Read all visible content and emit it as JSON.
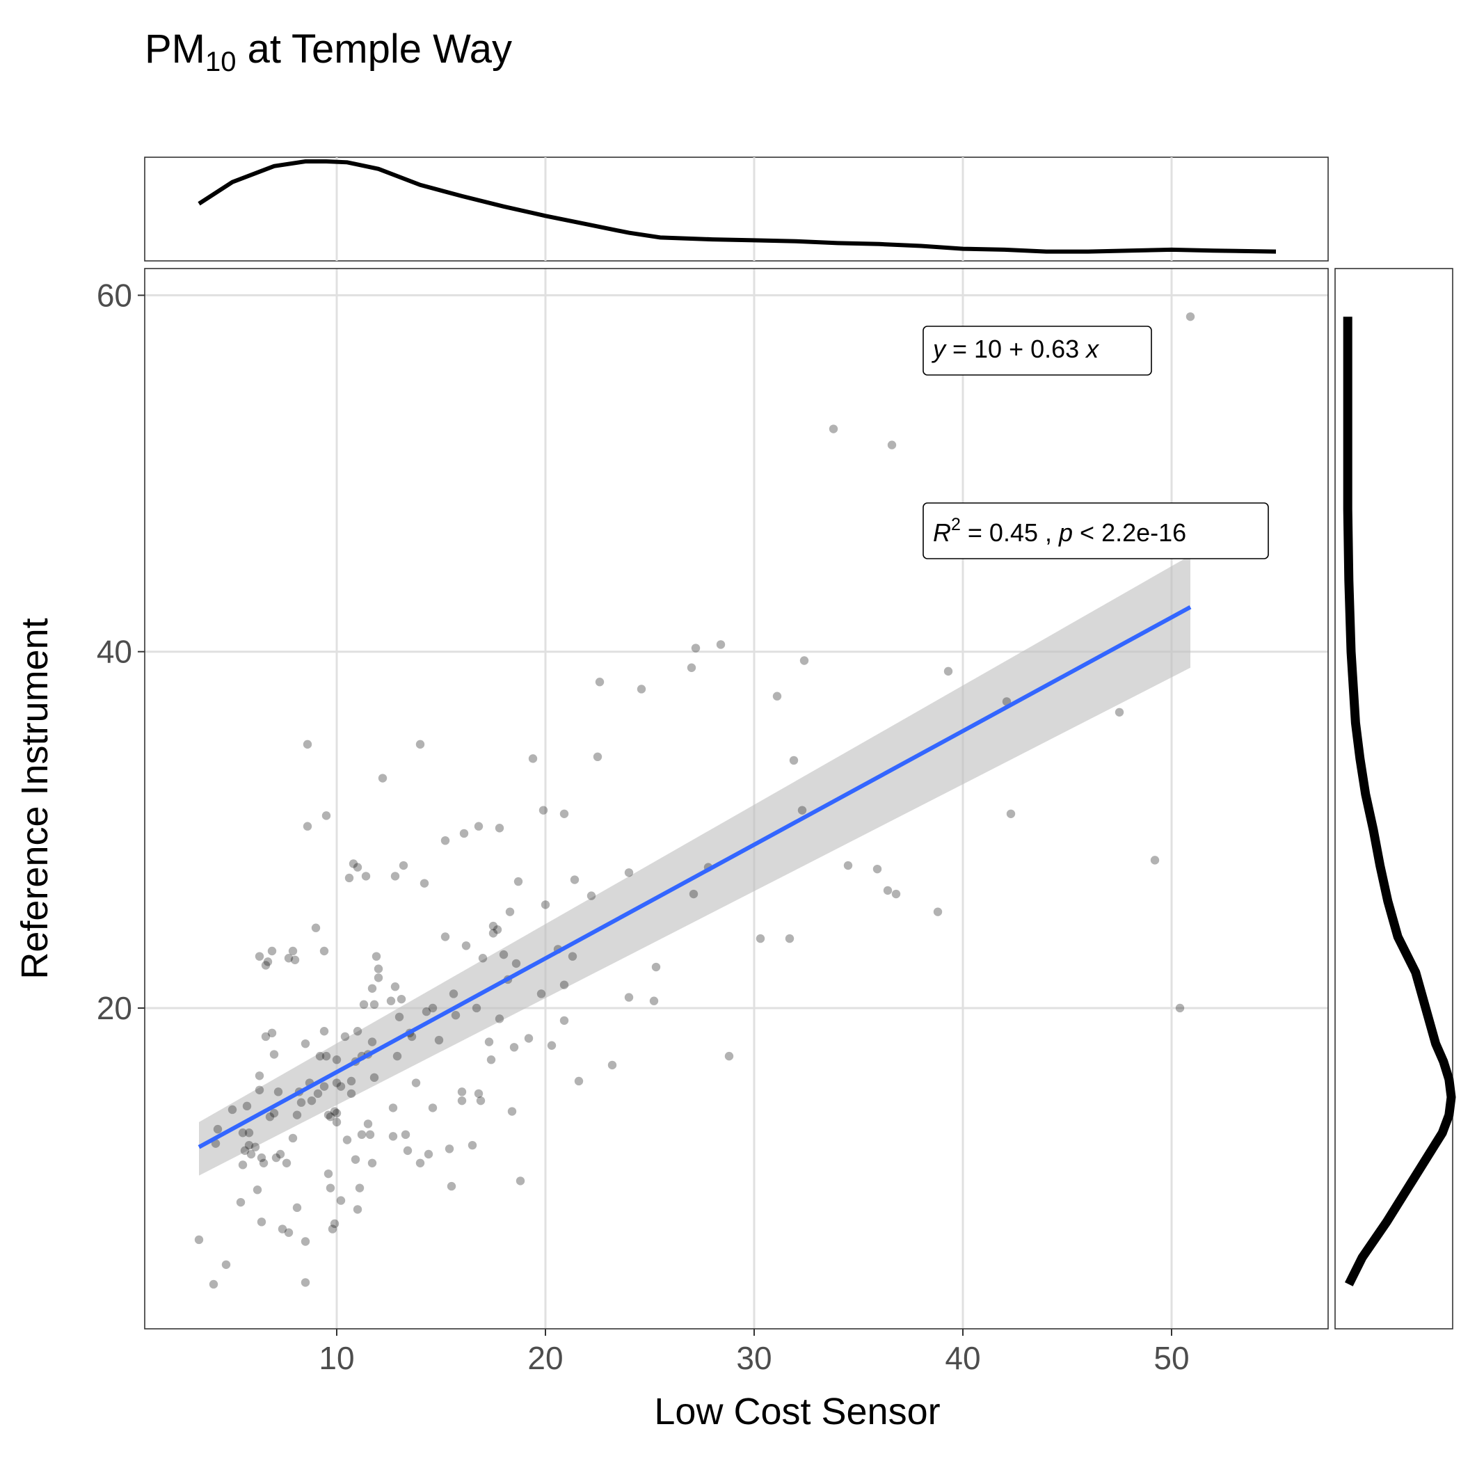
{
  "chart_data": {
    "type": "scatter",
    "title": "PM",
    "title_subscript": "10",
    "title_suffix": " at Temple Way",
    "xlabel": "Low Cost Sensor",
    "ylabel": "Reference Instrument",
    "xlim": [
      0.8,
      57.5
    ],
    "ylim": [
      2,
      61.5
    ],
    "x_ticks": [
      10,
      20,
      30,
      40,
      50
    ],
    "y_ticks": [
      20,
      40,
      60
    ],
    "grid": true,
    "point_color": "#000000",
    "regression": {
      "color": "#3366FF",
      "confidence_band_color": "#BEBEBE",
      "x_range": [
        3.4,
        50.9
      ],
      "intercept": 10,
      "slope": 0.63,
      "y_start": 12.2,
      "y_end": 42.5,
      "ci_lower": [
        10.6,
        39.1
      ],
      "ci_upper": [
        13.6,
        45.4
      ],
      "equation": {
        "y": "y",
        "eq": " = 10 + 0.63 ",
        "x": "x"
      },
      "stats": {
        "r": "R",
        "r_sup": "2",
        "mid": " = 0.45 , ",
        "p": "p",
        "tail": " < 2.2e-16"
      }
    },
    "marginal_x_density": {
      "x": [
        3.4,
        5,
        7,
        8.5,
        9.5,
        10.5,
        12,
        14,
        16,
        18,
        20,
        22,
        24,
        25.5,
        28,
        30,
        32,
        34,
        36,
        38,
        40,
        42,
        44,
        46,
        48,
        50,
        52,
        55
      ],
      "density": [
        0.55,
        0.78,
        0.95,
        1.0,
        1.0,
        0.99,
        0.92,
        0.75,
        0.63,
        0.52,
        0.42,
        0.33,
        0.24,
        0.19,
        0.17,
        0.16,
        0.15,
        0.13,
        0.12,
        0.1,
        0.07,
        0.06,
        0.04,
        0.04,
        0.05,
        0.06,
        0.05,
        0.04
      ]
    },
    "marginal_y_density": {
      "y": [
        4.5,
        6,
        8,
        10,
        12,
        13,
        14,
        15,
        16,
        17,
        18,
        20,
        22,
        24,
        26,
        28,
        30,
        32,
        34,
        36,
        38,
        40,
        44,
        48,
        52,
        56,
        58.8
      ],
      "density": [
        0.08,
        0.2,
        0.42,
        0.62,
        0.82,
        0.92,
        0.98,
        1.0,
        0.98,
        0.93,
        0.86,
        0.77,
        0.68,
        0.52,
        0.43,
        0.36,
        0.3,
        0.23,
        0.18,
        0.14,
        0.12,
        0.1,
        0.08,
        0.07,
        0.07,
        0.07,
        0.07
      ]
    },
    "points": [
      [
        3.4,
        7
      ],
      [
        4.1,
        4.5
      ],
      [
        4.2,
        12.4
      ],
      [
        4.3,
        13.2
      ],
      [
        4.7,
        5.6
      ],
      [
        5.0,
        14.3
      ],
      [
        5.4,
        9.1
      ],
      [
        5.5,
        13.0
      ],
      [
        5.5,
        11.2
      ],
      [
        5.6,
        12.0
      ],
      [
        5.7,
        14.5
      ],
      [
        5.8,
        12.3
      ],
      [
        5.8,
        13.0
      ],
      [
        5.9,
        11.8
      ],
      [
        6.1,
        12.2
      ],
      [
        6.2,
        9.8
      ],
      [
        6.3,
        15.4
      ],
      [
        6.3,
        22.9
      ],
      [
        6.3,
        16.2
      ],
      [
        6.4,
        8
      ],
      [
        6.4,
        11.6
      ],
      [
        6.5,
        11.3
      ],
      [
        6.6,
        22.4
      ],
      [
        6.6,
        18.4
      ],
      [
        6.7,
        22.6
      ],
      [
        6.8,
        13.9
      ],
      [
        6.9,
        23.2
      ],
      [
        6.9,
        18.6
      ],
      [
        7.0,
        14.1
      ],
      [
        7.0,
        17.4
      ],
      [
        7.1,
        11.6
      ],
      [
        7.2,
        15.3
      ],
      [
        7.3,
        11.8
      ],
      [
        7.4,
        7.6
      ],
      [
        7.6,
        11.3
      ],
      [
        7.7,
        7.4
      ],
      [
        7.7,
        22.8
      ],
      [
        7.9,
        12.7
      ],
      [
        7.9,
        23.2
      ],
      [
        8.0,
        22.7
      ],
      [
        8.1,
        14.0
      ],
      [
        8.1,
        8.8
      ],
      [
        8.2,
        15.3
      ],
      [
        8.3,
        14.7
      ],
      [
        8.5,
        6.9
      ],
      [
        8.5,
        18.0
      ],
      [
        8.5,
        4.6
      ],
      [
        8.6,
        34.8
      ],
      [
        8.6,
        30.2
      ],
      [
        8.7,
        15.8
      ],
      [
        8.8,
        14.8
      ],
      [
        9.0,
        24.5
      ],
      [
        9.1,
        15.2
      ],
      [
        9.2,
        17.3
      ],
      [
        9.4,
        23.2
      ],
      [
        9.4,
        18.7
      ],
      [
        9.4,
        15.6
      ],
      [
        9.5,
        17.3
      ],
      [
        9.5,
        30.8
      ],
      [
        9.6,
        14.0
      ],
      [
        9.6,
        10.7
      ],
      [
        9.7,
        9.9
      ],
      [
        9.7,
        13.9
      ],
      [
        9.8,
        7.6
      ],
      [
        9.9,
        14.2
      ],
      [
        9.9,
        7.9
      ],
      [
        10.0,
        13.6
      ],
      [
        10.0,
        14.1
      ],
      [
        10.0,
        17.1
      ],
      [
        10.0,
        15.8
      ],
      [
        10.2,
        9.2
      ],
      [
        10.2,
        15.6
      ],
      [
        10.4,
        18.4
      ],
      [
        10.5,
        12.6
      ],
      [
        10.6,
        27.3
      ],
      [
        10.7,
        15.2
      ],
      [
        10.7,
        15.9
      ],
      [
        10.8,
        28.1
      ],
      [
        10.9,
        17.0
      ],
      [
        10.9,
        11.5
      ],
      [
        11.0,
        18.7
      ],
      [
        11.0,
        27.9
      ],
      [
        11.0,
        8.7
      ],
      [
        11.1,
        9.9
      ],
      [
        11.2,
        12.9
      ],
      [
        11.2,
        17.3
      ],
      [
        11.3,
        20.2
      ],
      [
        11.4,
        27.4
      ],
      [
        11.5,
        17.4
      ],
      [
        11.5,
        13.5
      ],
      [
        11.6,
        12.9
      ],
      [
        11.7,
        18.1
      ],
      [
        11.7,
        21.1
      ],
      [
        11.7,
        11.3
      ],
      [
        11.8,
        16.1
      ],
      [
        11.8,
        20.2
      ],
      [
        11.9,
        22.9
      ],
      [
        12.0,
        21.7
      ],
      [
        12.0,
        22.2
      ],
      [
        12.2,
        32.9
      ],
      [
        12.6,
        20.4
      ],
      [
        12.7,
        14.4
      ],
      [
        12.7,
        12.8
      ],
      [
        12.8,
        27.4
      ],
      [
        12.8,
        21.2
      ],
      [
        12.9,
        17.3
      ],
      [
        13.0,
        19.5
      ],
      [
        13.1,
        20.5
      ],
      [
        13.2,
        28.0
      ],
      [
        13.3,
        12.9
      ],
      [
        13.4,
        12.0
      ],
      [
        13.5,
        18.6
      ],
      [
        13.6,
        18.4
      ],
      [
        13.8,
        15.8
      ],
      [
        14.0,
        11.3
      ],
      [
        14.0,
        34.8
      ],
      [
        14.2,
        27.0
      ],
      [
        14.3,
        19.8
      ],
      [
        14.4,
        11.8
      ],
      [
        14.6,
        14.4
      ],
      [
        14.6,
        20.0
      ],
      [
        14.9,
        18.2
      ],
      [
        15.2,
        29.4
      ],
      [
        15.2,
        24.0
      ],
      [
        15.4,
        12.1
      ],
      [
        15.5,
        10.0
      ],
      [
        15.6,
        20.8
      ],
      [
        15.7,
        19.6
      ],
      [
        16.0,
        15.3
      ],
      [
        16.0,
        14.8
      ],
      [
        16.1,
        29.8
      ],
      [
        16.2,
        23.5
      ],
      [
        16.5,
        12.3
      ],
      [
        16.7,
        20.0
      ],
      [
        16.8,
        15.2
      ],
      [
        16.8,
        30.2
      ],
      [
        16.9,
        14.8
      ],
      [
        17.0,
        22.8
      ],
      [
        17.3,
        18.1
      ],
      [
        17.4,
        17.1
      ],
      [
        17.5,
        24.6
      ],
      [
        17.5,
        24.2
      ],
      [
        17.7,
        24.4
      ],
      [
        17.8,
        30.1
      ],
      [
        17.8,
        19.4
      ],
      [
        18.0,
        23.0
      ],
      [
        18.2,
        21.6
      ],
      [
        18.3,
        25.4
      ],
      [
        18.4,
        14.2
      ],
      [
        18.5,
        17.8
      ],
      [
        18.6,
        22.5
      ],
      [
        18.7,
        27.1
      ],
      [
        18.8,
        10.3
      ],
      [
        19.2,
        18.3
      ],
      [
        19.4,
        34.0
      ],
      [
        19.8,
        20.8
      ],
      [
        19.9,
        31.1
      ],
      [
        20.0,
        25.8
      ],
      [
        20.3,
        17.9
      ],
      [
        20.6,
        23.3
      ],
      [
        20.9,
        21.3
      ],
      [
        20.9,
        19.3
      ],
      [
        20.9,
        30.9
      ],
      [
        21.3,
        22.9
      ],
      [
        21.4,
        27.2
      ],
      [
        21.6,
        15.9
      ],
      [
        22.2,
        26.3
      ],
      [
        22.5,
        34.1
      ],
      [
        22.6,
        38.3
      ],
      [
        23.2,
        16.8
      ],
      [
        24.0,
        20.6
      ],
      [
        24.0,
        27.6
      ],
      [
        24.6,
        37.9
      ],
      [
        25.2,
        20.4
      ],
      [
        25.3,
        22.3
      ],
      [
        27.0,
        39.1
      ],
      [
        27.1,
        26.4
      ],
      [
        27.2,
        40.2
      ],
      [
        27.8,
        27.9
      ],
      [
        28.4,
        40.4
      ],
      [
        28.8,
        17.3
      ],
      [
        30.3,
        23.9
      ],
      [
        31.1,
        37.5
      ],
      [
        31.7,
        23.9
      ],
      [
        31.9,
        33.9
      ],
      [
        32.3,
        31.1
      ],
      [
        32.4,
        39.5
      ],
      [
        33.8,
        52.5
      ],
      [
        34.5,
        28.0
      ],
      [
        35.9,
        27.8
      ],
      [
        36.4,
        26.6
      ],
      [
        36.6,
        51.6
      ],
      [
        36.8,
        26.4
      ],
      [
        38.8,
        25.4
      ],
      [
        39.3,
        38.9
      ],
      [
        42.1,
        37.2
      ],
      [
        42.3,
        30.9
      ],
      [
        47.5,
        36.6
      ],
      [
        49.2,
        28.3
      ],
      [
        50.4,
        20.0
      ],
      [
        50.9,
        58.8
      ]
    ]
  }
}
